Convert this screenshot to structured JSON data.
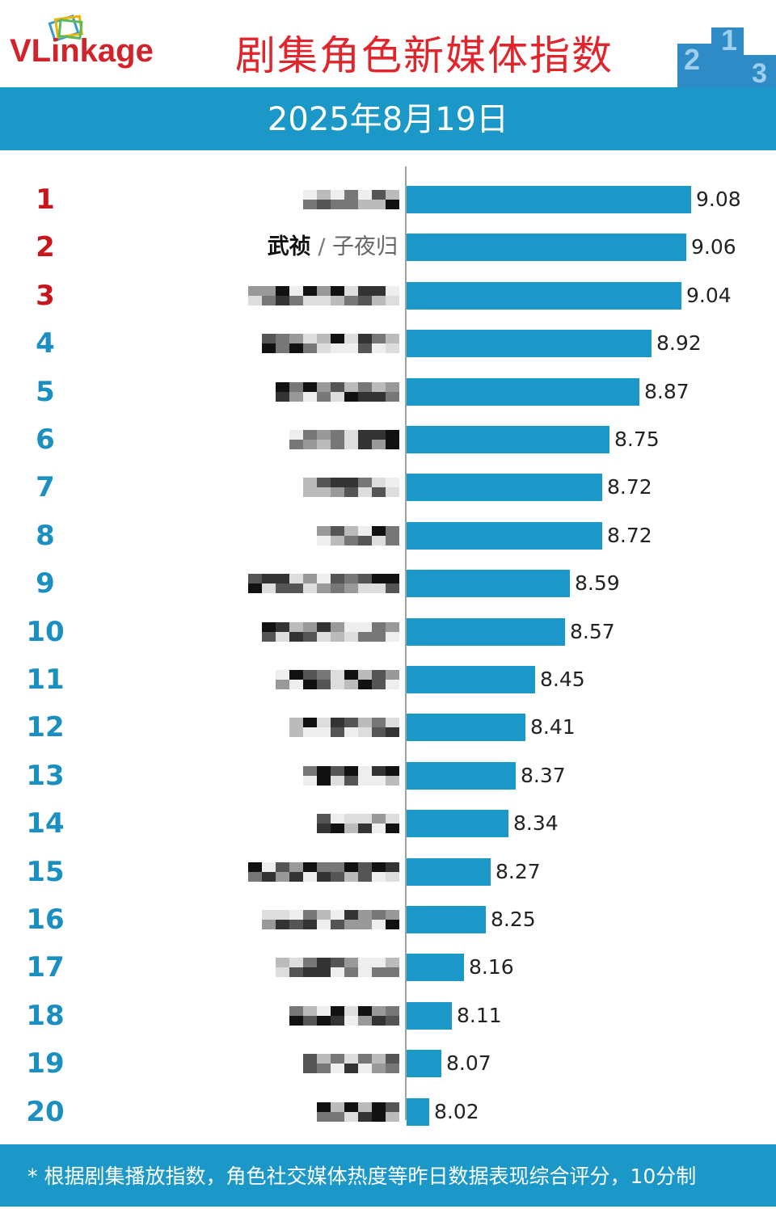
{
  "header": {
    "logo_text": "VLinkage",
    "title": "剧集角色新媒体指数",
    "date": "2025年8月19日"
  },
  "footer": {
    "note": "* 根据剧集播放指数，角色社交媒体热度等昨日数据表现综合评分，10分制"
  },
  "colors": {
    "bar": "#1b98c8",
    "rank_top": "#c8161d",
    "rank_rest": "#1a8fc0",
    "title": "#e0262d"
  },
  "chart_data": {
    "type": "bar",
    "orientation": "horizontal",
    "categories": [
      "1",
      "2",
      "3",
      "4",
      "5",
      "6",
      "7",
      "8",
      "9",
      "10",
      "11",
      "12",
      "13",
      "14",
      "15",
      "16",
      "17",
      "18",
      "19",
      "20"
    ],
    "values": [
      9.08,
      9.06,
      9.04,
      8.92,
      8.87,
      8.75,
      8.72,
      8.72,
      8.59,
      8.57,
      8.45,
      8.41,
      8.37,
      8.34,
      8.27,
      8.25,
      8.16,
      8.11,
      8.07,
      8.02
    ],
    "visible_label": {
      "rank": "2",
      "role": "武祯",
      "separator": "/",
      "actor": "子夜归"
    },
    "title": "剧集角色新媒体指数",
    "xlabel": "",
    "ylabel": "",
    "grid": false,
    "legend": "none"
  }
}
